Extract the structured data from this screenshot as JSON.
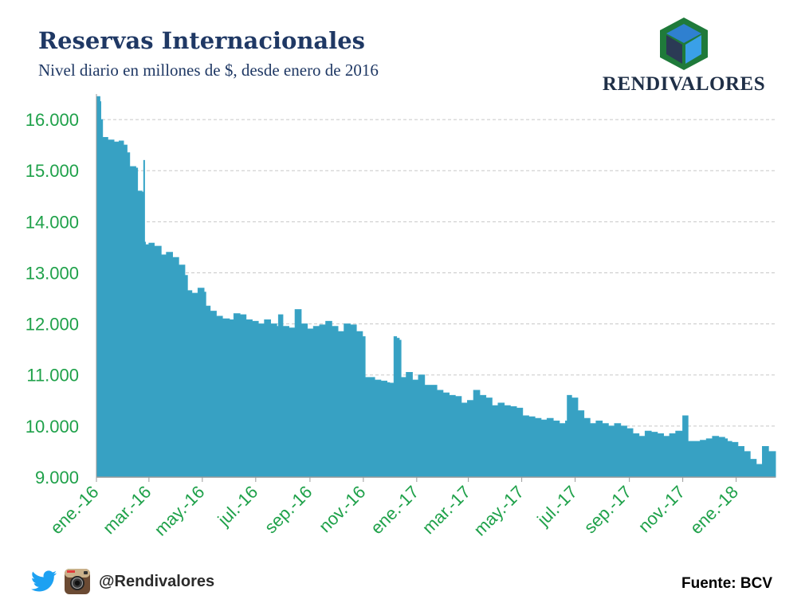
{
  "header": {
    "title": "Reservas Internacionales",
    "subtitle": "Nivel diario en millones de $, desde enero de 2016"
  },
  "brand": {
    "name": "RENDIVALORES"
  },
  "footer": {
    "social_handle": "@Rendivalores",
    "source": "Fuente: BCV"
  },
  "colors": {
    "area": "#37a1c3",
    "ticks": "#1fa14a",
    "title": "#1f3864"
  },
  "chart_data": {
    "type": "area",
    "title": "Reservas Internacionales",
    "subtitle": "Nivel diario en millones de $, desde enero de 2016",
    "xlabel": "",
    "ylabel": "",
    "ylim": [
      9000,
      16500
    ],
    "y_ticks": [
      "9.000",
      "10.000",
      "11.000",
      "12.000",
      "13.000",
      "14.000",
      "15.000",
      "16.000"
    ],
    "y_tick_values": [
      9000,
      10000,
      11000,
      12000,
      13000,
      14000,
      15000,
      16000
    ],
    "x_ticks": [
      "ene.-16",
      "mar.-16",
      "may.-16",
      "jul.-16",
      "sep.-16",
      "nov.-16",
      "ene.-17",
      "mar.-17",
      "may.-17",
      "jul.-17",
      "sep.-17",
      "nov.-17",
      "ene.-18"
    ],
    "x_tick_dates": [
      "2016-01-01",
      "2016-03-01",
      "2016-05-01",
      "2016-07-01",
      "2016-09-01",
      "2016-11-01",
      "2017-01-01",
      "2017-03-01",
      "2017-05-01",
      "2017-07-01",
      "2017-09-01",
      "2017-11-01",
      "2018-01-01"
    ],
    "xlim": [
      "2016-01-01",
      "2018-02-15"
    ],
    "grid": "horizontal dashed",
    "legend": "none",
    "series": [
      {
        "x": [
          "2016-01-01",
          "2016-01-05",
          "2016-01-06",
          "2016-01-08",
          "2016-01-14",
          "2016-01-21",
          "2016-01-27",
          "2016-02-01",
          "2016-02-05",
          "2016-02-08",
          "2016-02-15",
          "2016-02-17",
          "2016-02-22",
          "2016-02-24",
          "2016-02-25",
          "2016-02-26",
          "2016-03-01",
          "2016-03-07",
          "2016-03-15",
          "2016-03-21",
          "2016-03-28",
          "2016-04-04",
          "2016-04-11",
          "2016-04-14",
          "2016-04-19",
          "2016-04-26",
          "2016-05-03",
          "2016-05-05",
          "2016-05-10",
          "2016-05-17",
          "2016-05-24",
          "2016-06-01",
          "2016-06-06",
          "2016-06-13",
          "2016-06-20",
          "2016-06-27",
          "2016-07-04",
          "2016-07-11",
          "2016-07-18",
          "2016-07-25",
          "2016-07-27",
          "2016-08-01",
          "2016-08-08",
          "2016-08-15",
          "2016-08-22",
          "2016-08-29",
          "2016-09-05",
          "2016-09-12",
          "2016-09-19",
          "2016-09-26",
          "2016-10-03",
          "2016-10-10",
          "2016-10-17",
          "2016-10-24",
          "2016-10-31",
          "2016-11-03",
          "2016-11-07",
          "2016-11-14",
          "2016-11-21",
          "2016-11-28",
          "2016-12-01",
          "2016-12-06",
          "2016-12-09",
          "2016-12-12",
          "2016-12-14",
          "2016-12-20",
          "2016-12-27",
          "2017-01-03",
          "2017-01-10",
          "2017-01-17",
          "2017-01-24",
          "2017-01-31",
          "2017-02-07",
          "2017-02-14",
          "2017-02-21",
          "2017-02-28",
          "2017-03-07",
          "2017-03-14",
          "2017-03-21",
          "2017-03-28",
          "2017-04-04",
          "2017-04-11",
          "2017-04-18",
          "2017-04-25",
          "2017-05-02",
          "2017-05-09",
          "2017-05-16",
          "2017-05-23",
          "2017-05-30",
          "2017-06-06",
          "2017-06-13",
          "2017-06-20",
          "2017-06-22",
          "2017-06-27",
          "2017-07-04",
          "2017-07-11",
          "2017-07-18",
          "2017-07-25",
          "2017-08-01",
          "2017-08-08",
          "2017-08-15",
          "2017-08-22",
          "2017-08-29",
          "2017-09-05",
          "2017-09-12",
          "2017-09-19",
          "2017-09-26",
          "2017-10-03",
          "2017-10-10",
          "2017-10-17",
          "2017-10-24",
          "2017-10-31",
          "2017-11-01",
          "2017-11-07",
          "2017-11-14",
          "2017-11-21",
          "2017-11-28",
          "2017-12-05",
          "2017-12-12",
          "2017-12-19",
          "2017-12-22",
          "2017-12-27",
          "2018-01-03",
          "2018-01-10",
          "2018-01-17",
          "2018-01-24",
          "2018-01-31",
          "2018-02-07",
          "2018-02-15"
        ],
        "y": [
          16450,
          16350,
          16000,
          15650,
          15600,
          15560,
          15580,
          15500,
          15350,
          15080,
          15050,
          14600,
          14580,
          15200,
          13600,
          13550,
          13580,
          13520,
          13350,
          13400,
          13300,
          13150,
          12950,
          12650,
          12600,
          12700,
          12620,
          12350,
          12250,
          12150,
          12100,
          12080,
          12200,
          12180,
          12080,
          12050,
          12000,
          12080,
          12000,
          11950,
          12180,
          11950,
          11920,
          12280,
          12000,
          11900,
          11950,
          11980,
          12050,
          11950,
          11850,
          12000,
          11980,
          11850,
          11750,
          10950,
          10950,
          10900,
          10880,
          10850,
          10840,
          11750,
          11720,
          11680,
          10950,
          11050,
          10900,
          11000,
          10800,
          10800,
          10700,
          10650,
          10600,
          10580,
          10450,
          10500,
          10700,
          10600,
          10550,
          10400,
          10450,
          10400,
          10380,
          10350,
          10200,
          10180,
          10150,
          10120,
          10150,
          10100,
          10050,
          10100,
          10600,
          10550,
          10300,
          10150,
          10050,
          10100,
          10050,
          10000,
          10050,
          10000,
          9950,
          9850,
          9800,
          9900,
          9880,
          9850,
          9800,
          9850,
          9900,
          9900,
          10200,
          9700,
          9700,
          9720,
          9750,
          9800,
          9780,
          9750,
          9700,
          9680,
          9600,
          9500,
          9350,
          9250,
          9600,
          9500,
          9450
        ]
      }
    ]
  }
}
